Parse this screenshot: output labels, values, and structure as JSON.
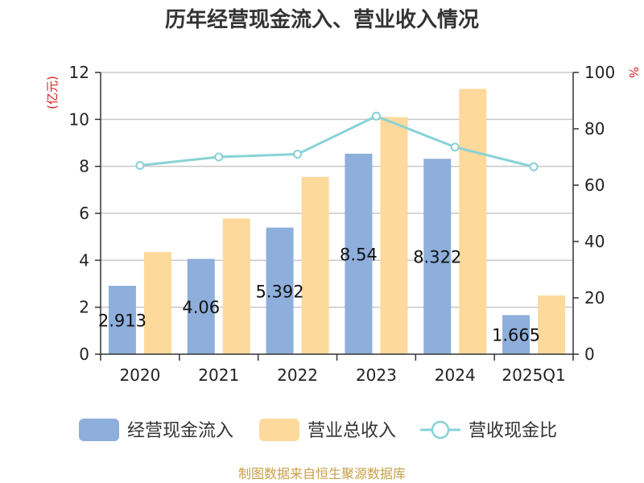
{
  "chart_data": {
    "type": "bar",
    "title": "历年经营现金流入、营业收入情况",
    "categories": [
      "2020",
      "2021",
      "2022",
      "2023",
      "2024",
      "2025Q1"
    ],
    "series": [
      {
        "name": "经营现金流入",
        "type": "bar",
        "axis": "left",
        "color": "#8eaedb",
        "values": [
          2.913,
          4.06,
          5.392,
          8.54,
          8.322,
          1.665
        ],
        "labels": [
          "2.913",
          "4.06",
          "5.392",
          "8.54",
          "8.322",
          "1.665"
        ]
      },
      {
        "name": "营业总收入",
        "type": "bar",
        "axis": "left",
        "color": "#fdd99b",
        "values": [
          4.35,
          5.78,
          7.55,
          10.1,
          11.3,
          2.5
        ]
      },
      {
        "name": "营收现金比",
        "type": "line",
        "axis": "right",
        "color": "#88d2d6",
        "values": [
          67,
          70,
          71,
          84.5,
          73.5,
          66.5
        ]
      }
    ],
    "y_left": {
      "unit": "(亿元)",
      "min": 0,
      "max": 12,
      "ticks": [
        0,
        2,
        4,
        6,
        8,
        10,
        12
      ]
    },
    "y_right": {
      "unit": "%",
      "min": 0,
      "max": 100,
      "ticks": [
        0,
        20,
        40,
        60,
        80,
        100
      ]
    },
    "grid": true,
    "legend_position": "bottom"
  },
  "source": "制图数据来自恒生聚源数据库"
}
